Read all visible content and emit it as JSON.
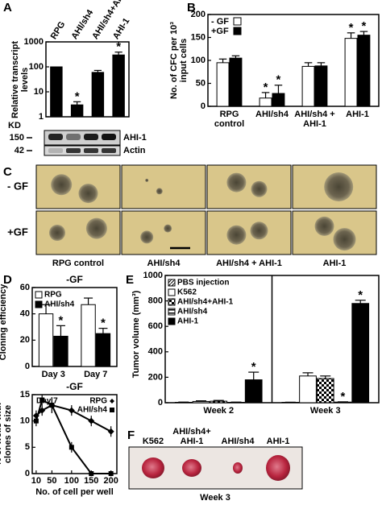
{
  "panel_labels": [
    "A",
    "B",
    "C",
    "D",
    "E",
    "F"
  ],
  "chart_data": [
    {
      "type": "bar",
      "ylabel": "Relative transcript levels",
      "log_scale": true,
      "categories": [
        "RPG",
        "AHI/sh4",
        "AHI/sh4+AHI-1",
        "AHI-1"
      ],
      "values": [
        100,
        3,
        60,
        300
      ],
      "errors": [
        null,
        1,
        12,
        90
      ],
      "significance": [
        null,
        "*",
        null,
        "*"
      ],
      "color": "#000000",
      "ylim": [
        1,
        1000
      ],
      "yticks": [
        1,
        10,
        100,
        1000
      ]
    },
    {
      "type": "bar",
      "ylabel": "No. of CFC per 10³ input cells",
      "legend": "upper left",
      "categories": [
        "RPG control",
        "AHI/sh4",
        "AHI/sh4 + AHI-1",
        "AHI-1"
      ],
      "series": [
        {
          "name": "- GF",
          "color": "#ffffff",
          "values": [
            95,
            18,
            87,
            148
          ],
          "errors": [
            8,
            12,
            8,
            12
          ],
          "significance": [
            null,
            "*",
            null,
            "*"
          ]
        },
        {
          "name": "+GF",
          "color": "#000000",
          "values": [
            105,
            28,
            88,
            155
          ],
          "errors": [
            5,
            18,
            7,
            8
          ],
          "significance": [
            null,
            "*",
            null,
            "*"
          ]
        }
      ],
      "ylim": [
        0,
        200
      ],
      "yticks": [
        0,
        50,
        100,
        150,
        200
      ]
    },
    {
      "type": "bar",
      "title": "-GF",
      "ylabel": "Cloning efficiency",
      "legend": "upper left",
      "categories": [
        "Day 3",
        "Day 7"
      ],
      "series": [
        {
          "name": "RPG",
          "color": "#ffffff",
          "values": [
            40,
            47
          ],
          "errors": [
            7,
            5
          ],
          "significance": [
            null,
            null
          ]
        },
        {
          "name": "AHI/sh4",
          "color": "#000000",
          "values": [
            23,
            25
          ],
          "errors": [
            8,
            4
          ],
          "significance": [
            "*",
            "*"
          ]
        }
      ],
      "ylim": [
        0,
        60
      ],
      "yticks": [
        0,
        20,
        40,
        60
      ]
    },
    {
      "type": "line",
      "title": "-GF",
      "annotation": "Day 7",
      "xlabel": "No. of cell per well",
      "ylabel": "% of wells with clones of size",
      "legend": "upper right",
      "x": [
        10,
        25,
        50,
        100,
        150,
        200
      ],
      "series": [
        {
          "name": "RPG",
          "color": "#000000",
          "marker": "diamond",
          "values": [
            11,
            12,
            13,
            12,
            10,
            8
          ],
          "errors": [
            1,
            1,
            1.5,
            1,
            1,
            1
          ]
        },
        {
          "name": "AHI/sh4",
          "color": "#000000",
          "marker": "square",
          "values": [
            10,
            14,
            13,
            5,
            0,
            0
          ],
          "errors": [
            1,
            1,
            1.5,
            1,
            0.5,
            0.5
          ]
        }
      ],
      "xlim": [
        0,
        215
      ],
      "xticks": [
        10,
        50,
        100,
        150,
        200
      ],
      "ylim": [
        0,
        15
      ],
      "yticks": [
        0,
        5,
        10,
        15
      ]
    },
    {
      "type": "bar",
      "ylabel": "Tumor volume (mm³)",
      "legend": "upper left",
      "category_dividers": true,
      "categories": [
        "Week 2",
        "Week 3"
      ],
      "series": [
        {
          "name": "PBS injection",
          "color": "#888888",
          "pattern": "hatch",
          "values": [
            3,
            3
          ],
          "errors": [
            2,
            1
          ],
          "significance": [
            null,
            null
          ]
        },
        {
          "name": "K562",
          "color": "#ffffff",
          "values": [
            10,
            210
          ],
          "errors": [
            5,
            25
          ],
          "significance": [
            null,
            null
          ]
        },
        {
          "name": "AHI/sh4+AHI-1",
          "color": "#000000",
          "pattern": "checker",
          "values": [
            12,
            190
          ],
          "errors": [
            6,
            20
          ],
          "significance": [
            null,
            null
          ]
        },
        {
          "name": "AHI/sh4",
          "color": "#666666",
          "pattern": "stripes",
          "values": [
            3,
            5
          ],
          "errors": [
            2,
            2
          ],
          "significance": [
            null,
            "*"
          ]
        },
        {
          "name": "AHI-1",
          "color": "#000000",
          "values": [
            180,
            780
          ],
          "errors": [
            60,
            25
          ],
          "significance": [
            "*",
            "*"
          ]
        }
      ],
      "ylim": [
        0,
        1000
      ],
      "yticks": [
        0,
        200,
        400,
        600,
        800,
        1000
      ]
    }
  ],
  "blot": {
    "unit": "KD",
    "markers": [
      "150",
      "42"
    ],
    "bands": [
      "AHI-1",
      "Actin"
    ]
  },
  "colony_images": {
    "rows": [
      "- GF",
      "+GF"
    ],
    "columns": [
      "RPG control",
      "AHI/sh4",
      "AHI/sh4 + AHI-1",
      "AHI-1"
    ]
  },
  "tumor_image": {
    "labels": [
      [
        "K562"
      ],
      [
        "AHI/sh4+",
        "AHI-1"
      ],
      [
        "AHI/sh4"
      ],
      [
        "AHI-1"
      ]
    ],
    "caption": "Week 3"
  }
}
